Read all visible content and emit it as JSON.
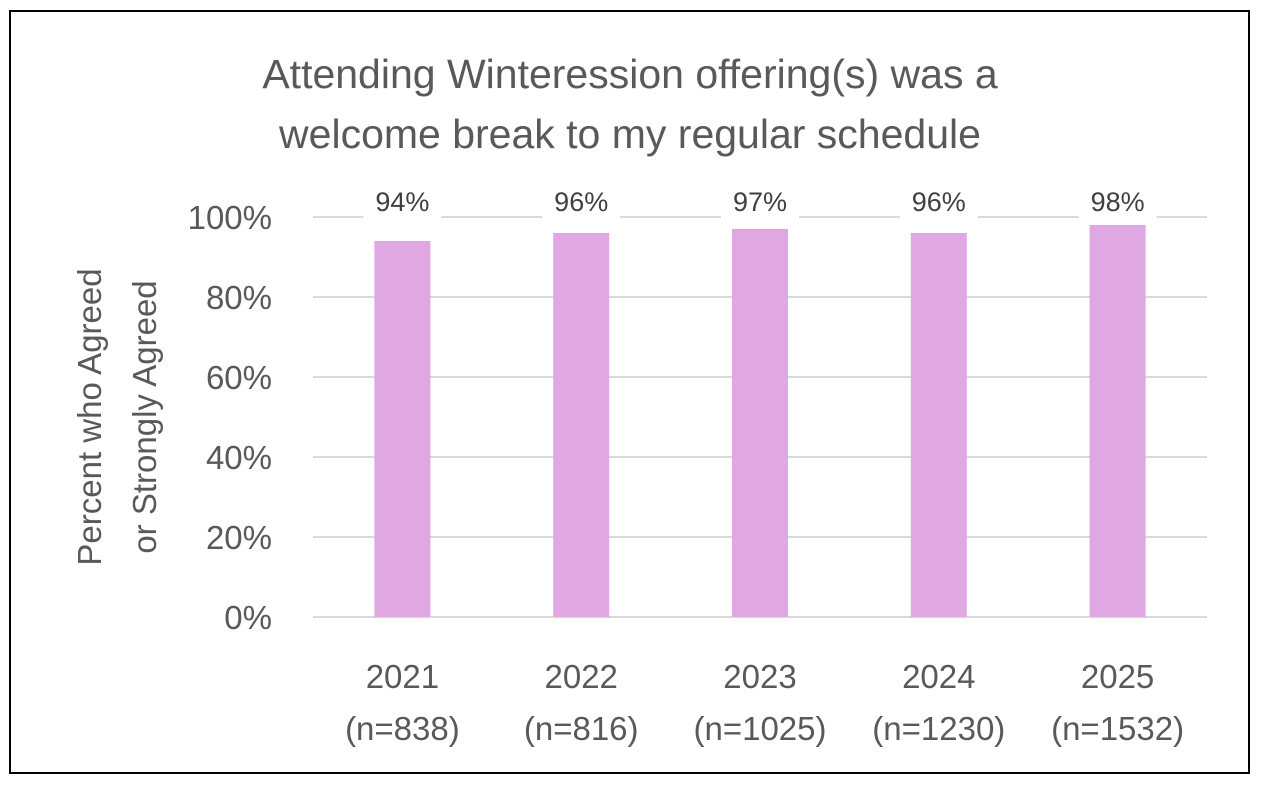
{
  "chart_data": {
    "type": "bar",
    "title": [
      "Attending Winteression offering(s) was a",
      "welcome break to my regular schedule"
    ],
    "ylabel": [
      "Percent who Agreed",
      "or Strongly Agreed"
    ],
    "categories": [
      [
        "2021",
        "(n=838)"
      ],
      [
        "2022",
        "(n=816)"
      ],
      [
        "2023",
        "(n=1025)"
      ],
      [
        "2024",
        "(n=1230)"
      ],
      [
        "2025",
        "(n=1532)"
      ]
    ],
    "values": [
      94,
      96,
      97,
      96,
      98
    ],
    "data_labels": [
      "94%",
      "96%",
      "97%",
      "96%",
      "98%"
    ],
    "yticks": [
      "0%",
      "20%",
      "40%",
      "60%",
      "80%",
      "100%"
    ],
    "ylim": [
      0,
      100
    ],
    "grid": true,
    "bar_color": "#dfa8e2",
    "gridline_color": "#d9d9d9"
  }
}
